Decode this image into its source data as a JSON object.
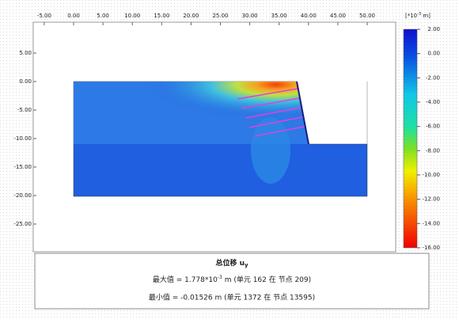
{
  "plot": {
    "x_ticks": [
      {
        "value": -5,
        "label": "-5.00"
      },
      {
        "value": 0,
        "label": "0.00"
      },
      {
        "value": 5,
        "label": "5.00"
      },
      {
        "value": 10,
        "label": "10.00"
      },
      {
        "value": 15,
        "label": "15.00"
      },
      {
        "value": 20,
        "label": "20.00"
      },
      {
        "value": 25,
        "label": "25.00"
      },
      {
        "value": 30,
        "label": "30.00"
      },
      {
        "value": 35,
        "label": "35.00"
      },
      {
        "value": 40,
        "label": "40.00"
      },
      {
        "value": 45,
        "label": "45.00"
      },
      {
        "value": 50,
        "label": "50.00"
      }
    ],
    "y_ticks": [
      {
        "value": 5,
        "label": "5.00"
      },
      {
        "value": 0,
        "label": "0.00"
      },
      {
        "value": -5,
        "label": "-5.00"
      },
      {
        "value": -10,
        "label": "-10.00"
      },
      {
        "value": -15,
        "label": "-15.00"
      },
      {
        "value": -20,
        "label": "-20.00"
      },
      {
        "value": -25,
        "label": "-25.00"
      }
    ]
  },
  "colorbar": {
    "unit": {
      "pre": "[*10",
      "sup": "-3",
      "post": " m]"
    },
    "ticks": [
      {
        "value": 2,
        "label": "2.00"
      },
      {
        "value": 0,
        "label": "0.00"
      },
      {
        "value": -2,
        "label": "-2.00"
      },
      {
        "value": -4,
        "label": "-4.00"
      },
      {
        "value": -6,
        "label": "-6.00"
      },
      {
        "value": -8,
        "label": "-8.00"
      },
      {
        "value": -10,
        "label": "-10.00"
      },
      {
        "value": -12,
        "label": "-12.00"
      },
      {
        "value": -14,
        "label": "-14.00"
      },
      {
        "value": -16,
        "label": "-16.00"
      }
    ]
  },
  "info": {
    "title": {
      "main": "总位移 u",
      "sub": "y"
    },
    "max": {
      "pre": "最大值 = 1.778*10",
      "sup": "-3",
      "post": " m (单元 162 在 节点 209)"
    },
    "min": "最小值 = -0.01526 m (单元 1372 在 节点 13595)"
  }
}
